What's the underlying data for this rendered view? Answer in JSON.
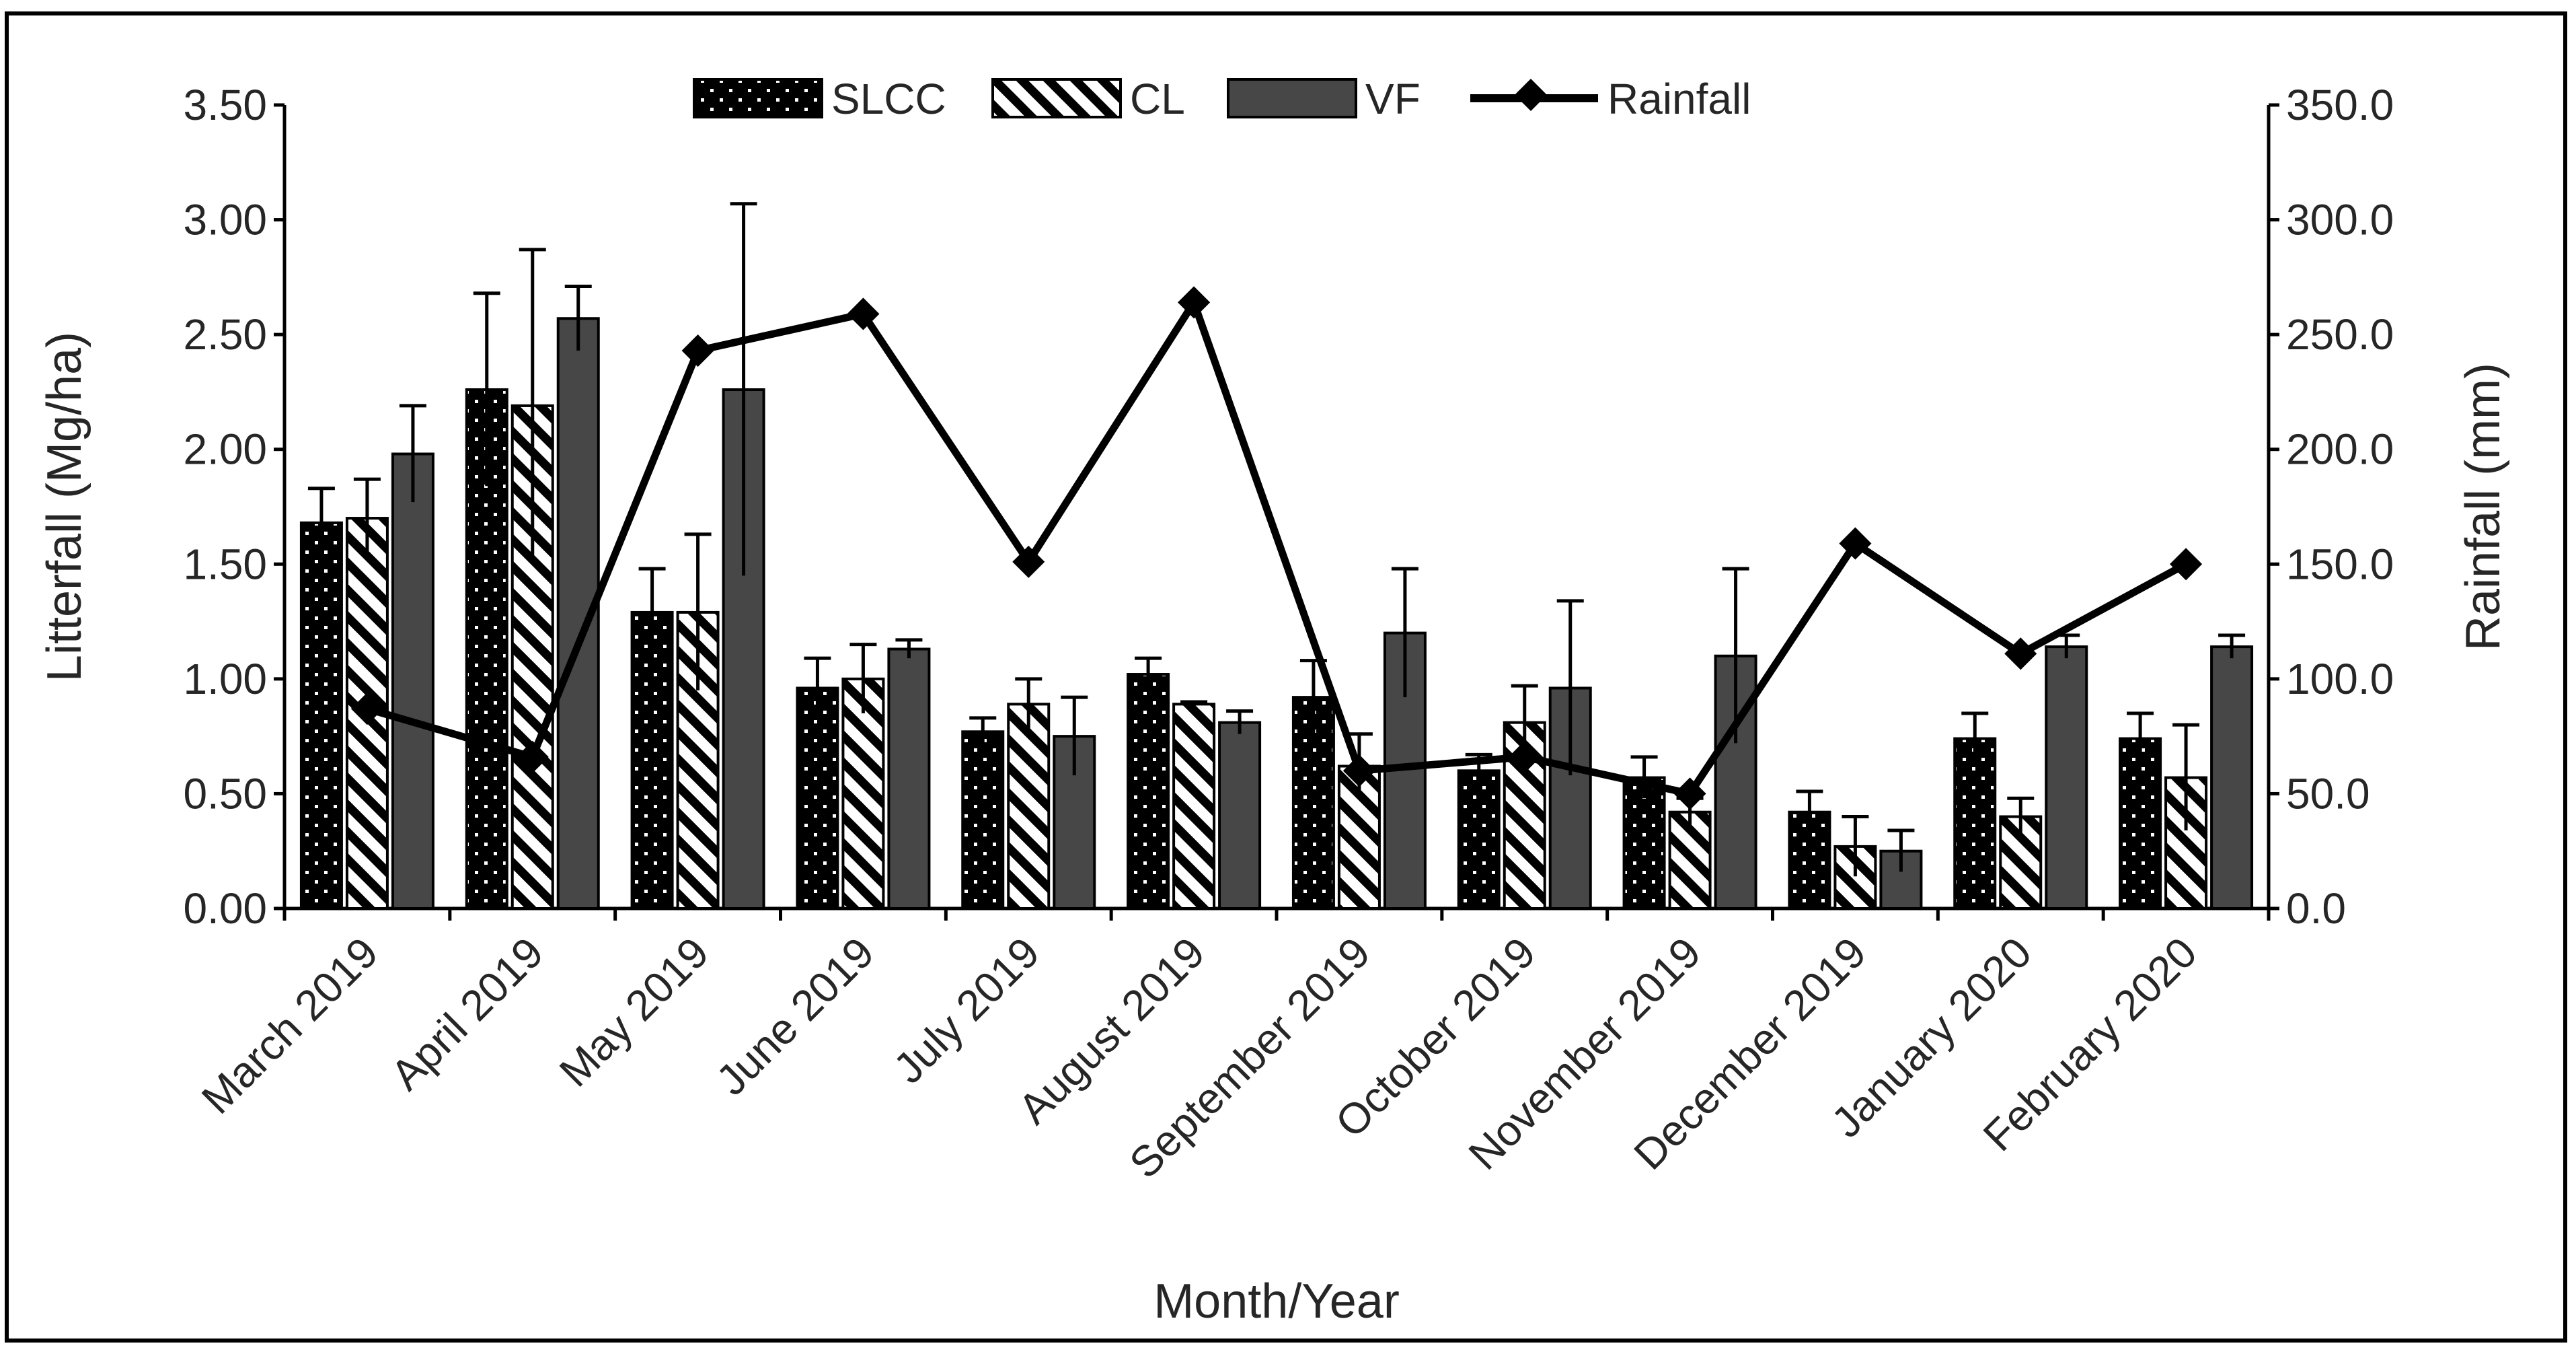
{
  "chart_data": {
    "type": "bar",
    "title": "",
    "xlabel": "Month/Year",
    "ylabel": "Litterfall (Mg/ha)",
    "y2label": "Rainfall (mm)",
    "ylim": [
      0,
      3.5
    ],
    "y2lim": [
      0,
      350
    ],
    "yticks": [
      "0.00",
      "0.50",
      "1.00",
      "1.50",
      "2.00",
      "2.50",
      "3.00",
      "3.50"
    ],
    "y2ticks": [
      "0.0",
      "50.0",
      "100.0",
      "150.0",
      "200.0",
      "250.0",
      "300.0",
      "350.0"
    ],
    "categories": [
      "March 2019",
      "April 2019",
      "May 2019",
      "June 2019",
      "July 2019",
      "August 2019",
      "September 2019",
      "October 2019",
      "November 2019",
      "December 2019",
      "January 2020",
      "February 2020"
    ],
    "legend_position": "top",
    "series": [
      {
        "name": "SLCC",
        "kind": "bar",
        "pattern": "dots",
        "color": "#000000",
        "values": [
          1.68,
          2.26,
          1.29,
          0.96,
          0.77,
          1.02,
          0.92,
          0.6,
          0.57,
          0.42,
          0.74,
          0.74
        ],
        "errors": [
          0.15,
          0.42,
          0.19,
          0.13,
          0.06,
          0.07,
          0.16,
          0.07,
          0.09,
          0.09,
          0.11,
          0.11
        ]
      },
      {
        "name": "CL",
        "kind": "bar",
        "pattern": "diagonal-stripes",
        "color": "#000000",
        "values": [
          1.7,
          2.19,
          1.29,
          1.0,
          0.89,
          0.89,
          0.62,
          0.81,
          0.42,
          0.27,
          0.4,
          0.57
        ],
        "errors": [
          0.17,
          0.68,
          0.34,
          0.15,
          0.11,
          0.01,
          0.14,
          0.16,
          0.06,
          0.13,
          0.08,
          0.23
        ]
      },
      {
        "name": "VF",
        "kind": "bar",
        "pattern": "solid",
        "color": "#474747",
        "values": [
          1.98,
          2.57,
          2.26,
          1.13,
          0.75,
          0.81,
          1.2,
          0.96,
          1.1,
          0.25,
          1.14,
          1.14
        ],
        "errors": [
          0.21,
          0.14,
          0.81,
          0.04,
          0.17,
          0.05,
          0.28,
          0.38,
          0.38,
          0.09,
          0.05,
          0.05
        ]
      },
      {
        "name": "Rainfall",
        "kind": "line",
        "axis": "y2",
        "marker": "diamond",
        "color": "#000000",
        "values": [
          87,
          66,
          243,
          259,
          151,
          264,
          60,
          66,
          50,
          159,
          111,
          150
        ]
      }
    ]
  }
}
